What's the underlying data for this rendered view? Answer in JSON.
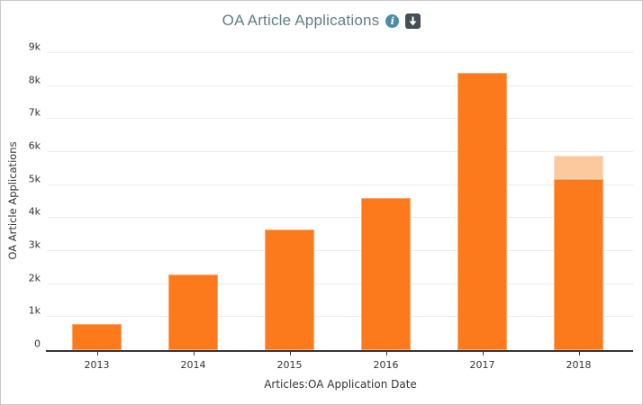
{
  "header": {
    "title": "OA Article Applications",
    "icons": [
      {
        "name": "info-icon",
        "glyph": "i"
      },
      {
        "name": "download-icon",
        "glyph": "down-arrow"
      }
    ]
  },
  "colors": {
    "bar": "#fd7a1c",
    "bar_light": "#fcc99e",
    "grid": "#ebebeb",
    "axis": "#37373b",
    "title": "#607d8b",
    "tick_label": "#333333",
    "info_icon_bg": "#4b8ca6",
    "download_icon_bg": "#454f57",
    "frame_border": "#c9c9c9"
  },
  "chart_data": {
    "type": "bar",
    "categories": [
      "2013",
      "2014",
      "2015",
      "2016",
      "2017",
      "2018"
    ],
    "series": [
      {
        "name": "oa-article-applications",
        "color": "#fd7a1c",
        "values": [
          800,
          2280,
          3660,
          4620,
          8410,
          5180
        ]
      },
      {
        "name": "oa-article-applications-light-top-segment",
        "color": "#fcc99e",
        "values": [
          0,
          0,
          0,
          0,
          0,
          710
        ]
      }
    ],
    "title": "OA Article Applications",
    "xlabel": "Articles:OA Application Date",
    "ylabel": "OA Article Applications",
    "ylim": [
      0,
      9000
    ],
    "ytick_step": 1000,
    "yticks": [
      "0",
      "1k",
      "2k",
      "3k",
      "4k",
      "5k",
      "6k",
      "7k",
      "8k",
      "9k"
    ],
    "grid": true,
    "legend": false
  }
}
